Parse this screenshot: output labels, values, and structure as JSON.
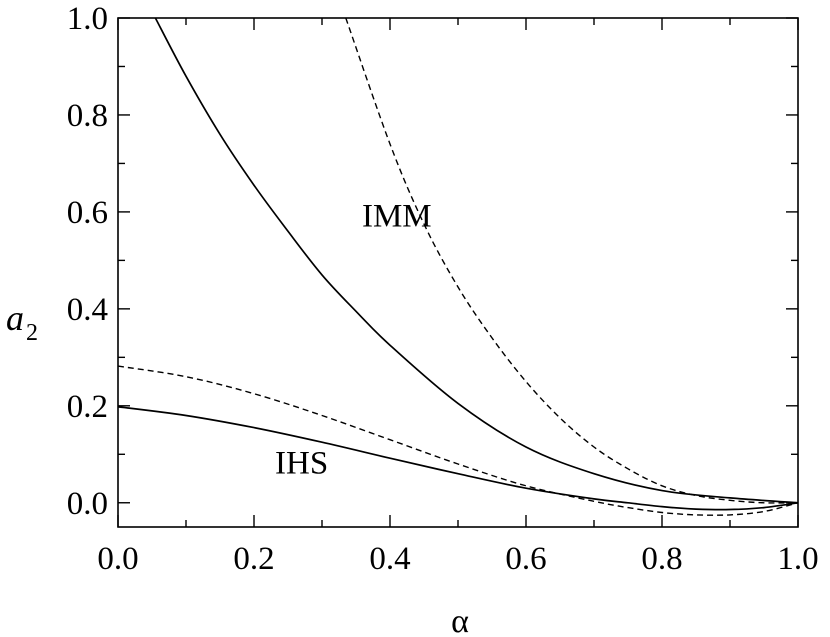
{
  "chart_data": {
    "type": "line",
    "title": "",
    "xlabel": "α",
    "ylabel": "a",
    "ylabel_subscript": "2",
    "xlim": [
      0.0,
      1.0
    ],
    "ylim": [
      -0.05,
      1.0
    ],
    "x_ticks": [
      0.0,
      0.2,
      0.4,
      0.6,
      0.8,
      1.0
    ],
    "x_tick_labels": [
      "0.0",
      "0.2",
      "0.4",
      "0.6",
      "0.8",
      "1.0"
    ],
    "y_ticks": [
      0.0,
      0.2,
      0.4,
      0.6,
      0.8,
      1.0
    ],
    "y_tick_labels": [
      "0.0",
      "0.2",
      "0.4",
      "0.6",
      "0.8",
      "1.0"
    ],
    "grid": false,
    "legend": "none",
    "annotations": [
      {
        "text": "IMM",
        "x": 0.41,
        "y": 0.57
      },
      {
        "text": "IHS",
        "x": 0.27,
        "y": 0.06
      }
    ],
    "series": [
      {
        "group": "IMM",
        "style": "solid",
        "x": [
          0.055,
          0.1,
          0.15,
          0.2,
          0.25,
          0.3,
          0.35,
          0.4,
          0.5,
          0.6,
          0.7,
          0.8,
          0.9,
          1.0
        ],
        "y": [
          1.0,
          0.88,
          0.76,
          0.655,
          0.56,
          0.47,
          0.395,
          0.325,
          0.205,
          0.115,
          0.06,
          0.025,
          0.01,
          0.0
        ]
      },
      {
        "group": "IMM",
        "style": "dashed",
        "x": [
          0.335,
          0.4,
          0.45,
          0.5,
          0.55,
          0.6,
          0.65,
          0.7,
          0.75,
          0.8,
          0.85,
          0.9,
          0.95,
          1.0
        ],
        "y": [
          1.0,
          0.74,
          0.575,
          0.445,
          0.34,
          0.25,
          0.175,
          0.115,
          0.07,
          0.035,
          0.015,
          0.005,
          0.0,
          0.0
        ]
      },
      {
        "group": "IHS",
        "style": "solid",
        "x": [
          0.0,
          0.1,
          0.2,
          0.3,
          0.4,
          0.5,
          0.6,
          0.7,
          0.75,
          0.8,
          0.85,
          0.9,
          0.95,
          1.0
        ],
        "y": [
          0.198,
          0.18,
          0.155,
          0.125,
          0.092,
          0.06,
          0.03,
          0.008,
          0.0,
          -0.008,
          -0.013,
          -0.014,
          -0.01,
          0.0
        ]
      },
      {
        "group": "IHS",
        "style": "dashed",
        "x": [
          0.0,
          0.1,
          0.2,
          0.3,
          0.4,
          0.5,
          0.6,
          0.7,
          0.75,
          0.8,
          0.85,
          0.9,
          0.95,
          1.0
        ],
        "y": [
          0.282,
          0.26,
          0.225,
          0.18,
          0.13,
          0.08,
          0.035,
          0.003,
          -0.01,
          -0.02,
          -0.025,
          -0.025,
          -0.018,
          0.0
        ]
      }
    ]
  }
}
